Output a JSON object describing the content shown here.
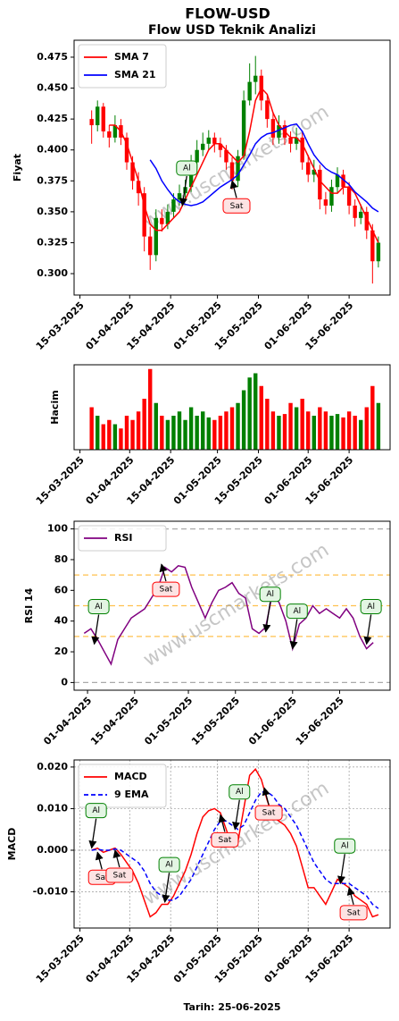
{
  "watermark": "www.uscmarkets.com",
  "chart_data": [
    {
      "type": "candlestick",
      "title": "FLOW-USD",
      "subtitle": "Flow USD Teknik Analizi",
      "ylabel": "Fiyat",
      "watermark": true,
      "x": [
        "19-03-2025",
        "21-03-2025",
        "23-03-2025",
        "25-03-2025",
        "27-03-2025",
        "29-03-2025",
        "31-03-2025",
        "02-04-2025",
        "04-04-2025",
        "06-04-2025",
        "08-04-2025",
        "10-04-2025",
        "12-04-2025",
        "14-04-2025",
        "16-04-2025",
        "18-04-2025",
        "20-04-2025",
        "22-04-2025",
        "24-04-2025",
        "26-04-2025",
        "28-04-2025",
        "30-04-2025",
        "02-05-2025",
        "04-05-2025",
        "06-05-2025",
        "08-05-2025",
        "10-05-2025",
        "12-05-2025",
        "14-05-2025",
        "16-05-2025",
        "18-05-2025",
        "20-05-2025",
        "22-05-2025",
        "24-05-2025",
        "26-05-2025",
        "28-05-2025",
        "30-05-2025",
        "01-06-2025",
        "03-06-2025",
        "05-06-2025",
        "07-06-2025",
        "09-06-2025",
        "11-06-2025",
        "13-06-2025",
        "15-06-2025",
        "17-06-2025",
        "19-06-2025",
        "21-06-2025",
        "23-06-2025",
        "25-06-2025"
      ],
      "open": [
        0.425,
        0.42,
        0.435,
        0.415,
        0.41,
        0.42,
        0.41,
        0.39,
        0.375,
        0.365,
        0.33,
        0.315,
        0.345,
        0.34,
        0.35,
        0.36,
        0.365,
        0.37,
        0.39,
        0.4,
        0.405,
        0.41,
        0.405,
        0.4,
        0.39,
        0.375,
        0.395,
        0.44,
        0.455,
        0.46,
        0.44,
        0.425,
        0.41,
        0.42,
        0.41,
        0.405,
        0.41,
        0.39,
        0.38,
        0.384,
        0.36,
        0.355,
        0.37,
        0.38,
        0.37,
        0.355,
        0.345,
        0.35,
        0.335,
        0.31
      ],
      "high": [
        0.432,
        0.44,
        0.438,
        0.42,
        0.428,
        0.425,
        0.414,
        0.395,
        0.382,
        0.37,
        0.338,
        0.352,
        0.352,
        0.356,
        0.365,
        0.372,
        0.376,
        0.396,
        0.408,
        0.414,
        0.416,
        0.414,
        0.41,
        0.404,
        0.394,
        0.4,
        0.448,
        0.47,
        0.476,
        0.465,
        0.445,
        0.43,
        0.428,
        0.424,
        0.415,
        0.418,
        0.414,
        0.396,
        0.392,
        0.388,
        0.366,
        0.376,
        0.386,
        0.384,
        0.374,
        0.36,
        0.356,
        0.354,
        0.34,
        0.33
      ],
      "low": [
        0.405,
        0.415,
        0.41,
        0.402,
        0.406,
        0.404,
        0.384,
        0.368,
        0.355,
        0.318,
        0.303,
        0.31,
        0.334,
        0.336,
        0.345,
        0.355,
        0.36,
        0.366,
        0.385,
        0.395,
        0.4,
        0.398,
        0.394,
        0.384,
        0.368,
        0.37,
        0.392,
        0.436,
        0.445,
        0.432,
        0.418,
        0.404,
        0.405,
        0.404,
        0.398,
        0.4,
        0.384,
        0.374,
        0.374,
        0.352,
        0.348,
        0.35,
        0.365,
        0.364,
        0.348,
        0.338,
        0.34,
        0.328,
        0.292,
        0.305
      ],
      "close": [
        0.42,
        0.435,
        0.415,
        0.41,
        0.42,
        0.41,
        0.39,
        0.375,
        0.365,
        0.33,
        0.315,
        0.345,
        0.34,
        0.35,
        0.36,
        0.365,
        0.37,
        0.39,
        0.4,
        0.405,
        0.41,
        0.405,
        0.4,
        0.39,
        0.375,
        0.395,
        0.44,
        0.455,
        0.46,
        0.44,
        0.425,
        0.41,
        0.42,
        0.41,
        0.405,
        0.41,
        0.39,
        0.38,
        0.384,
        0.36,
        0.355,
        0.37,
        0.38,
        0.37,
        0.355,
        0.345,
        0.35,
        0.335,
        0.31,
        0.325
      ],
      "up_color": "green",
      "down_color": "red",
      "series": [
        {
          "name": "SMA 7",
          "color": "red",
          "values": [
            null,
            null,
            null,
            0.42,
            0.42,
            0.415,
            0.405,
            0.39,
            0.375,
            0.355,
            0.34,
            0.335,
            0.335,
            0.34,
            0.345,
            0.35,
            0.36,
            0.37,
            0.38,
            0.39,
            0.4,
            0.405,
            0.405,
            0.4,
            0.395,
            0.39,
            0.395,
            0.415,
            0.44,
            0.45,
            0.445,
            0.43,
            0.42,
            0.415,
            0.41,
            0.41,
            0.405,
            0.395,
            0.385,
            0.375,
            0.37,
            0.365,
            0.365,
            0.37,
            0.37,
            0.365,
            0.355,
            0.345,
            0.335,
            0.325
          ]
        },
        {
          "name": "SMA 21",
          "color": "blue",
          "values": [
            null,
            null,
            null,
            null,
            null,
            null,
            null,
            null,
            null,
            null,
            0.392,
            0.385,
            0.375,
            0.368,
            0.362,
            0.358,
            0.356,
            0.355,
            0.356,
            0.358,
            0.362,
            0.366,
            0.37,
            0.373,
            0.376,
            0.38,
            0.388,
            0.396,
            0.405,
            0.41,
            0.413,
            0.414,
            0.416,
            0.418,
            0.42,
            0.421,
            0.415,
            0.405,
            0.396,
            0.39,
            0.385,
            0.382,
            0.38,
            0.376,
            0.372,
            0.366,
            0.362,
            0.358,
            0.353,
            0.35
          ]
        }
      ],
      "xlim": [
        "13-03-2025",
        "29-06-2025"
      ],
      "xticks": [
        "15-03-2025",
        "01-04-2025",
        "15-04-2025",
        "01-05-2025",
        "15-05-2025",
        "01-06-2025",
        "15-06-2025"
      ],
      "ylim": [
        0.2827,
        0.4887
      ],
      "yticks": [
        {
          "value": 0.3,
          "label": "0.300"
        },
        {
          "value": 0.325,
          "label": "0.325"
        },
        {
          "value": 0.35,
          "label": "0.350"
        },
        {
          "value": 0.375,
          "label": "0.375"
        },
        {
          "value": 0.4,
          "label": "0.400"
        },
        {
          "value": 0.425,
          "label": "0.425"
        },
        {
          "value": 0.45,
          "label": "0.450"
        },
        {
          "value": 0.475,
          "label": "0.475"
        }
      ],
      "legend": "upper left",
      "grid": false,
      "annotations": [
        {
          "text": "Al",
          "x": "19-04-2025",
          "y": 0.355,
          "color": "green"
        },
        {
          "text": "Sat",
          "x": "06-05-2025",
          "y": 0.375,
          "color": "red"
        }
      ]
    },
    {
      "type": "bar",
      "ylabel": "Hacim",
      "x": [
        "19-03-2025",
        "21-03-2025",
        "23-03-2025",
        "25-03-2025",
        "27-03-2025",
        "29-03-2025",
        "31-03-2025",
        "02-04-2025",
        "04-04-2025",
        "06-04-2025",
        "08-04-2025",
        "10-04-2025",
        "12-04-2025",
        "14-04-2025",
        "16-04-2025",
        "18-04-2025",
        "20-04-2025",
        "22-04-2025",
        "24-04-2025",
        "26-04-2025",
        "28-04-2025",
        "30-04-2025",
        "02-05-2025",
        "04-05-2025",
        "06-05-2025",
        "08-05-2025",
        "10-05-2025",
        "12-05-2025",
        "14-05-2025",
        "16-05-2025",
        "18-05-2025",
        "20-05-2025",
        "22-05-2025",
        "24-05-2025",
        "26-05-2025",
        "28-05-2025",
        "30-05-2025",
        "01-06-2025",
        "03-06-2025",
        "05-06-2025",
        "07-06-2025",
        "09-06-2025",
        "11-06-2025",
        "13-06-2025",
        "15-06-2025",
        "17-06-2025",
        "19-06-2025",
        "21-06-2025",
        "23-06-2025",
        "25-06-2025"
      ],
      "values": [
        50,
        40,
        30,
        35,
        30,
        25,
        40,
        35,
        45,
        60,
        95,
        55,
        40,
        35,
        40,
        45,
        35,
        50,
        40,
        45,
        38,
        35,
        40,
        45,
        50,
        55,
        70,
        85,
        90,
        75,
        60,
        45,
        40,
        42,
        55,
        50,
        60,
        45,
        40,
        50,
        45,
        40,
        42,
        38,
        45,
        40,
        35,
        50,
        75,
        55
      ],
      "up_color": "green",
      "down_color": "red",
      "xlim": [
        "13-03-2025",
        "29-06-2025"
      ],
      "xticks": [
        "15-03-2025",
        "01-04-2025",
        "15-04-2025",
        "01-05-2025",
        "15-05-2025",
        "01-06-2025",
        "15-06-2025"
      ],
      "ylim": [
        0,
        100
      ],
      "yticks": []
    },
    {
      "type": "line",
      "ylabel": "RSI 14",
      "watermark": true,
      "x": [
        "31-03-2025",
        "02-04-2025",
        "04-04-2025",
        "06-04-2025",
        "08-04-2025",
        "10-04-2025",
        "12-04-2025",
        "14-04-2025",
        "16-04-2025",
        "18-04-2025",
        "20-04-2025",
        "22-04-2025",
        "24-04-2025",
        "26-04-2025",
        "28-04-2025",
        "30-04-2025",
        "02-05-2025",
        "04-05-2025",
        "06-05-2025",
        "08-05-2025",
        "10-05-2025",
        "12-05-2025",
        "14-05-2025",
        "16-05-2025",
        "18-05-2025",
        "20-05-2025",
        "22-05-2025",
        "24-05-2025",
        "26-05-2025",
        "28-05-2025",
        "30-05-2025",
        "01-06-2025",
        "03-06-2025",
        "05-06-2025",
        "07-06-2025",
        "09-06-2025",
        "11-06-2025",
        "13-06-2025",
        "15-06-2025",
        "17-06-2025",
        "19-06-2025",
        "21-06-2025",
        "23-06-2025",
        "25-06-2025"
      ],
      "series": [
        {
          "name": "RSI",
          "color": "purple",
          "values": [
            32,
            35,
            28,
            20,
            12,
            28,
            35,
            42,
            45,
            48,
            55,
            62,
            75,
            72,
            76,
            75,
            62,
            52,
            42,
            52,
            60,
            62,
            65,
            58,
            55,
            35,
            32,
            36,
            58,
            52,
            40,
            22,
            38,
            42,
            50,
            45,
            48,
            45,
            42,
            48,
            42,
            30,
            22,
            26
          ]
        }
      ],
      "hlines": [
        {
          "value": 0,
          "color": "#aaaaaa"
        },
        {
          "value": 30,
          "color": "#ffc04d"
        },
        {
          "value": 50,
          "color": "#ffc04d"
        },
        {
          "value": 70,
          "color": "#ffc04d"
        },
        {
          "value": 100,
          "color": "#aaaaaa"
        }
      ],
      "xlim": [
        "28-03-2025",
        "30-06-2025"
      ],
      "xticks": [
        "01-04-2025",
        "15-04-2025",
        "01-05-2025",
        "15-05-2025",
        "01-06-2025",
        "15-06-2025"
      ],
      "ylim": [
        -5,
        105
      ],
      "yticks": [
        0,
        20,
        40,
        60,
        80,
        100
      ],
      "legend": "upper left",
      "grid": false,
      "annotations": [
        {
          "text": "Al",
          "x": "03-04-2025",
          "y": 25,
          "color": "green"
        },
        {
          "text": "Sat",
          "x": "23-04-2025",
          "y": 77,
          "color": "red"
        },
        {
          "text": "Al",
          "x": "24-05-2025",
          "y": 33,
          "color": "green"
        },
        {
          "text": "Al",
          "x": "01-06-2025",
          "y": 22,
          "color": "green"
        },
        {
          "text": "Al",
          "x": "23-06-2025",
          "y": 25,
          "color": "green"
        }
      ]
    },
    {
      "type": "line",
      "ylabel": "MACD",
      "xlabel": "Tarih: 25-06-2025",
      "watermark": true,
      "x": [
        "19-03-2025",
        "21-03-2025",
        "23-03-2025",
        "25-03-2025",
        "27-03-2025",
        "29-03-2025",
        "31-03-2025",
        "02-04-2025",
        "04-04-2025",
        "06-04-2025",
        "08-04-2025",
        "10-04-2025",
        "12-04-2025",
        "14-04-2025",
        "16-04-2025",
        "18-04-2025",
        "20-04-2025",
        "22-04-2025",
        "24-04-2025",
        "26-04-2025",
        "28-04-2025",
        "30-04-2025",
        "02-05-2025",
        "04-05-2025",
        "06-05-2025",
        "08-05-2025",
        "10-05-2025",
        "12-05-2025",
        "14-05-2025",
        "16-05-2025",
        "18-05-2025",
        "20-05-2025",
        "22-05-2025",
        "24-05-2025",
        "26-05-2025",
        "28-05-2025",
        "30-05-2025",
        "01-06-2025",
        "03-06-2025",
        "05-06-2025",
        "07-06-2025",
        "09-06-2025",
        "11-06-2025",
        "13-06-2025",
        "15-06-2025",
        "17-06-2025",
        "19-06-2025",
        "21-06-2025",
        "23-06-2025",
        "25-06-2025"
      ],
      "series": [
        {
          "name": "MACD",
          "color": "red",
          "values": [
            0.0,
            0.0005,
            -0.0005,
            0.0,
            0.0005,
            -0.001,
            -0.003,
            -0.005,
            -0.008,
            -0.012,
            -0.016,
            -0.015,
            -0.013,
            -0.013,
            -0.011,
            -0.008,
            -0.005,
            -0.001,
            0.004,
            0.008,
            0.0095,
            0.01,
            0.009,
            0.005,
            0.001,
            0.002,
            0.01,
            0.018,
            0.0195,
            0.017,
            0.012,
            0.008,
            0.007,
            0.006,
            0.004,
            0.001,
            -0.004,
            -0.009,
            -0.009,
            -0.011,
            -0.013,
            -0.01,
            -0.007,
            -0.008,
            -0.009,
            -0.011,
            -0.012,
            -0.013,
            -0.016,
            -0.0155
          ]
        },
        {
          "name": "9 EMA",
          "color": "blue",
          "dash": true,
          "values": [
            0.0,
            0.0002,
            0.0,
            0.0,
            0.0003,
            0.0,
            -0.001,
            -0.002,
            -0.003,
            -0.005,
            -0.008,
            -0.01,
            -0.011,
            -0.012,
            -0.012,
            -0.011,
            -0.009,
            -0.007,
            -0.004,
            -0.001,
            0.002,
            0.005,
            0.007,
            0.007,
            0.006,
            0.005,
            0.006,
            0.009,
            0.012,
            0.014,
            0.014,
            0.013,
            0.011,
            0.01,
            0.008,
            0.006,
            0.003,
            0.0,
            -0.003,
            -0.005,
            -0.007,
            -0.008,
            -0.008,
            -0.008,
            -0.008,
            -0.009,
            -0.01,
            -0.011,
            -0.013,
            -0.014
          ]
        }
      ],
      "xlim": [
        "13-03-2025",
        "29-06-2025"
      ],
      "xticks": [
        "15-03-2025",
        "01-04-2025",
        "15-04-2025",
        "01-05-2025",
        "15-05-2025",
        "01-06-2025",
        "15-06-2025"
      ],
      "ylim": [
        -0.0187,
        0.0217
      ],
      "yticks": [
        {
          "value": -0.01,
          "label": "-0.010"
        },
        {
          "value": 0,
          "label": "0.000"
        },
        {
          "value": 0.01,
          "label": "0.010"
        },
        {
          "value": 0.02,
          "label": "0.020"
        }
      ],
      "legend": "upper left",
      "grid": true,
      "annotations": [
        {
          "text": "Al",
          "x": "19-03-2025",
          "y": 0.0005,
          "color": "green"
        },
        {
          "text": "Sat",
          "x": "21-03-2025",
          "y": -0.0005,
          "color": "red"
        },
        {
          "text": "Sat",
          "x": "27-03-2025",
          "y": 0.0,
          "color": "red"
        },
        {
          "text": "Al",
          "x": "13-04-2025",
          "y": -0.0125,
          "color": "green"
        },
        {
          "text": "Sat",
          "x": "02-05-2025",
          "y": 0.0085,
          "color": "red"
        },
        {
          "text": "Al",
          "x": "07-05-2025",
          "y": 0.005,
          "color": "green"
        },
        {
          "text": "Sat",
          "x": "17-05-2025",
          "y": 0.015,
          "color": "red"
        },
        {
          "text": "Al",
          "x": "12-06-2025",
          "y": -0.008,
          "color": "green"
        },
        {
          "text": "Sat",
          "x": "15-06-2025",
          "y": -0.009,
          "color": "red"
        }
      ]
    }
  ]
}
